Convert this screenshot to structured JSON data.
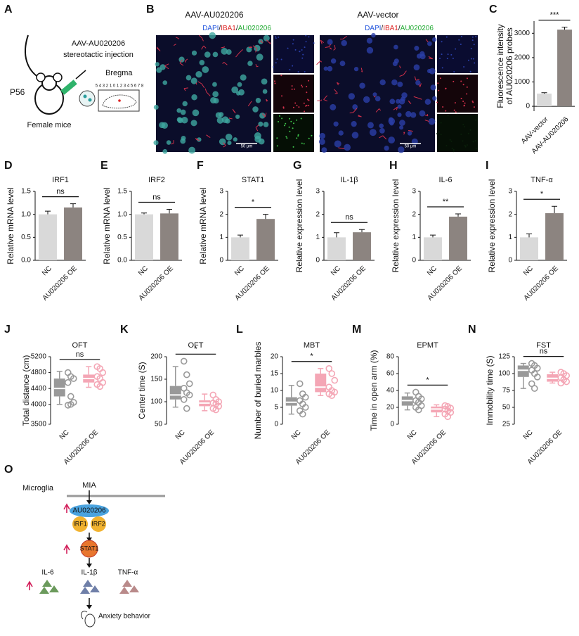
{
  "panel_a": {
    "label": "A",
    "injection": "AAV-AU020206",
    "procedure": "stereotactic injection",
    "age": "P56",
    "subject": "Female mice",
    "bregma": "Bregma",
    "scale": "5 4 3 2 1 0 1 2 3 4 5 6 7 8"
  },
  "panel_b": {
    "label": "B",
    "groups": [
      {
        "title": "AAV-AU020206",
        "stains": [
          "DAPI",
          "/",
          "IBA1",
          "/",
          "AU020206"
        ],
        "scale_bar": "50 μm"
      },
      {
        "title": "AAV-vector",
        "stains": [
          "DAPI",
          "/",
          "IBA1",
          "/",
          "AU020206"
        ],
        "scale_bar": "50 μm"
      }
    ]
  },
  "panel_o": {
    "label": "O",
    "cell": "Microglia",
    "stimulus": "MIA",
    "gene": "AU020206",
    "partners": [
      "IRF1",
      "IRF2"
    ],
    "factor": "STAT1",
    "cytokines": [
      "IL-6",
      "IL-1β",
      "TNF-α"
    ],
    "outcome": "Anxiety behavior"
  },
  "chart_data": [
    {
      "type": "bar",
      "panel": "C",
      "ylabel": [
        "Fluorescence intensity",
        "of AU020206 probes"
      ],
      "categories": [
        "AAV-vector",
        "AAV-AU020206"
      ],
      "values": [
        520,
        3150
      ],
      "errors": [
        40,
        100
      ],
      "colors": [
        "#d9d9d9",
        "#8c8480"
      ],
      "ylim": [
        -200,
        3500
      ],
      "yticks": [
        0,
        1000,
        2000,
        3000
      ],
      "significance": "***"
    },
    {
      "type": "bar",
      "panel": "D",
      "title": "IRF1",
      "ylabel": "Relative mRNA level",
      "categories": [
        "NC",
        "AU020206 OE"
      ],
      "values": [
        1.0,
        1.15
      ],
      "errors": [
        0.07,
        0.08
      ],
      "colors": [
        "#d9d9d9",
        "#8c8480"
      ],
      "ylim": [
        0,
        1.5
      ],
      "yticks": [
        {
          "value": 0,
          "label": "0.0"
        },
        0.5,
        {
          "value": 1,
          "label": "1.0"
        },
        1.5
      ],
      "significance": "ns"
    },
    {
      "type": "bar",
      "panel": "E",
      "title": "IRF2",
      "ylabel": "Relative mRNA level",
      "categories": [
        "NC",
        "AU020206 OE"
      ],
      "values": [
        1.0,
        1.02
      ],
      "errors": [
        0.03,
        0.09
      ],
      "colors": [
        "#d9d9d9",
        "#8c8480"
      ],
      "ylim": [
        0,
        1.5
      ],
      "yticks": [
        {
          "value": 0,
          "label": "0.0"
        },
        0.5,
        {
          "value": 1,
          "label": "1.0"
        },
        1.5
      ],
      "significance": "ns"
    },
    {
      "type": "bar",
      "panel": "F",
      "title": "STAT1",
      "ylabel": "Relative mRNA level",
      "categories": [
        "NC",
        "AU020206 OE"
      ],
      "values": [
        1.0,
        1.8
      ],
      "errors": [
        0.1,
        0.2
      ],
      "colors": [
        "#d9d9d9",
        "#8c8480"
      ],
      "ylim": [
        0,
        3
      ],
      "yticks": [
        0,
        1,
        2,
        3
      ],
      "significance": "*"
    },
    {
      "type": "bar",
      "panel": "G",
      "title": "IL-1β",
      "ylabel": "Relative expression level",
      "categories": [
        "NC",
        "AU020206 OE"
      ],
      "values": [
        1.0,
        1.22
      ],
      "errors": [
        0.2,
        0.12
      ],
      "colors": [
        "#d9d9d9",
        "#8c8480"
      ],
      "ylim": [
        0,
        3
      ],
      "yticks": [
        0,
        1,
        2,
        3
      ],
      "significance": "ns"
    },
    {
      "type": "bar",
      "panel": "H",
      "title": "IL-6",
      "ylabel": "Relative expression level",
      "categories": [
        "NC",
        "AU020206 OE"
      ],
      "values": [
        1.0,
        1.9
      ],
      "errors": [
        0.1,
        0.12
      ],
      "colors": [
        "#d9d9d9",
        "#8c8480"
      ],
      "ylim": [
        0,
        3
      ],
      "yticks": [
        0,
        1,
        2,
        3
      ],
      "significance": "**"
    },
    {
      "type": "bar",
      "panel": "I",
      "title": "TNF-α",
      "ylabel": "Relative expression level",
      "categories": [
        "NC",
        "AU020206 OE"
      ],
      "values": [
        1.0,
        2.05
      ],
      "errors": [
        0.15,
        0.3
      ],
      "colors": [
        "#d9d9d9",
        "#8c8480"
      ],
      "ylim": [
        0,
        3
      ],
      "yticks": [
        0,
        1,
        2,
        3
      ],
      "significance": "*"
    },
    {
      "type": "box",
      "panel": "J",
      "title": "OFT",
      "ylabel": "Total distance (cm)",
      "categories": [
        "NC",
        "AU020206 OE"
      ],
      "colors": [
        "#999999",
        "#f4a6b5"
      ],
      "ylim": [
        3500,
        5200
      ],
      "yticks": [
        3500,
        4000,
        4400,
        4800,
        5200
      ],
      "significance": "ns",
      "boxes": [
        {
          "min": 4000,
          "q1": 4200,
          "median": 4400,
          "q3": 4650,
          "max": 4830,
          "points": [
            4800,
            4700,
            4650,
            4550,
            4200,
            4050,
            3980,
            4000
          ]
        },
        {
          "min": 4430,
          "q1": 4550,
          "median": 4650,
          "q3": 4750,
          "max": 4950,
          "points": [
            4950,
            4900,
            4800,
            4700,
            4650,
            4550,
            4500,
            4450
          ]
        }
      ]
    },
    {
      "type": "box",
      "panel": "K",
      "title": "OFT",
      "ylabel": "Center time (S)",
      "categories": [
        "NC",
        "AU020206 OE"
      ],
      "colors": [
        "#999999",
        "#f4a6b5"
      ],
      "ylim": [
        50,
        200
      ],
      "yticks": [
        50,
        100,
        150,
        200
      ],
      "significance": "*",
      "boxes": [
        {
          "min": 88,
          "q1": 105,
          "median": 115,
          "q3": 135,
          "max": 178,
          "points": [
            190,
            160,
            140,
            130,
            120,
            115,
            105,
            85
          ]
        },
        {
          "min": 80,
          "q1": 90,
          "median": 97,
          "q3": 103,
          "max": 117,
          "points": [
            115,
            105,
            100,
            97,
            95,
            90,
            85,
            82
          ]
        }
      ]
    },
    {
      "type": "box",
      "panel": "L",
      "title": "MBT",
      "ylabel": "Number of buried marbles",
      "categories": [
        "NC",
        "AU020206 OE"
      ],
      "colors": [
        "#999999",
        "#f4a6b5"
      ],
      "ylim": [
        0,
        20
      ],
      "yticks": [
        0,
        5,
        10,
        15,
        20
      ],
      "significance": "*",
      "boxes": [
        {
          "min": 3,
          "q1": 5.5,
          "median": 6.5,
          "q3": 8,
          "max": 11.5,
          "points": [
            12,
            9,
            8,
            7,
            6,
            5,
            4,
            3
          ]
        },
        {
          "min": 8.5,
          "q1": 9.5,
          "median": 11,
          "q3": 15,
          "max": 16.5,
          "points": [
            16.5,
            15,
            13,
            11,
            10,
            9.5,
            9,
            8.5
          ]
        }
      ]
    },
    {
      "type": "box",
      "panel": "M",
      "title": "EPMT",
      "ylabel": "Time in open arm (%)",
      "categories": [
        "NC",
        "AU020206 OE"
      ],
      "colors": [
        "#999999",
        "#f4a6b5"
      ],
      "ylim": [
        0,
        80
      ],
      "yticks": [
        0,
        20,
        40,
        60,
        80
      ],
      "significance": "*",
      "boxes": [
        {
          "min": 17,
          "q1": 22,
          "median": 28,
          "q3": 33,
          "max": 37,
          "points": [
            38,
            33,
            30,
            28,
            26,
            22,
            20,
            17
          ]
        },
        {
          "min": 9,
          "q1": 14,
          "median": 18,
          "q3": 21,
          "max": 23,
          "points": [
            22,
            21,
            19,
            18,
            16,
            14,
            12,
            9
          ]
        }
      ]
    },
    {
      "type": "box",
      "panel": "N",
      "title": "FST",
      "ylabel": "Immobility time (S)",
      "categories": [
        "NC",
        "AU020206 OE"
      ],
      "colors": [
        "#999999",
        "#f4a6b5"
      ],
      "ylim": [
        25,
        125
      ],
      "yticks": [
        25,
        50,
        75,
        100,
        125
      ],
      "significance": "ns",
      "boxes": [
        {
          "min": 78,
          "q1": 95,
          "median": 105,
          "q3": 112,
          "max": 115,
          "points": [
            115,
            112,
            108,
            105,
            100,
            95,
            85,
            78
          ]
        },
        {
          "min": 86,
          "q1": 88,
          "median": 93,
          "q3": 99,
          "max": 102,
          "points": [
            102,
            100,
            97,
            94,
            91,
            88,
            86
          ]
        }
      ]
    }
  ]
}
